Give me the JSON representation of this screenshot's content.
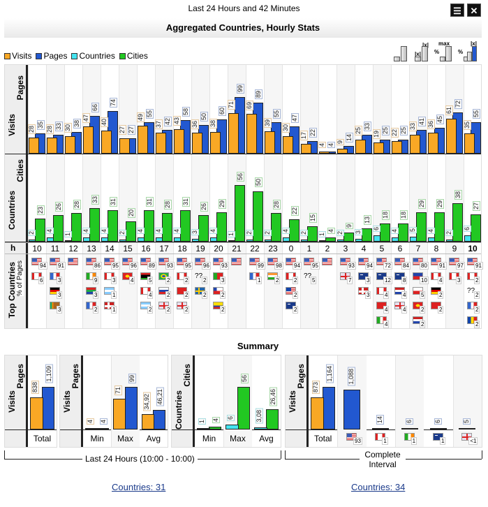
{
  "window": {
    "subtitle": "Last 24 Hours and 42 Minutes",
    "title": "Aggregated Countries, Hourly Stats",
    "menu_glyph": "☰",
    "close_glyph": "✕"
  },
  "legend": [
    {
      "label": "Visits",
      "color": "#f9a825"
    },
    {
      "label": "Pages",
      "color": "#2258d0"
    },
    {
      "label": "Countries",
      "color": "#44e4f0"
    },
    {
      "label": "Cities",
      "color": "#22c822"
    }
  ],
  "toolbar": {
    "abs": "|x|",
    "max": "max",
    "pct": "%"
  },
  "axis_labels": {
    "visits": "Visits",
    "pages": "Pages",
    "countries": "Countries",
    "cities": "Cities",
    "hour": "h",
    "top_countries": "Top Countries",
    "pct_pages": "% of Pages"
  },
  "chart_data": {
    "type": "bar",
    "title": "Aggregated Countries, Hourly Stats",
    "xlabel": "h",
    "categories": [
      "10",
      "11",
      "12",
      "13",
      "14",
      "15",
      "16",
      "17",
      "18",
      "19",
      "20",
      "21",
      "22",
      "23",
      "0",
      "1",
      "2",
      "3",
      "4",
      "5",
      "6",
      "7",
      "8",
      "9",
      "10"
    ],
    "series": [
      {
        "name": "Visits",
        "values": [
          28,
          28,
          30,
          47,
          40,
          27,
          49,
          37,
          43,
          36,
          38,
          71,
          69,
          39,
          30,
          17,
          4,
          9,
          25,
          19,
          22,
          33,
          36,
          61,
          35
        ]
      },
      {
        "name": "Pages",
        "values": [
          35,
          33,
          38,
          66,
          74,
          27,
          55,
          42,
          58,
          50,
          60,
          99,
          89,
          55,
          47,
          22,
          4,
          14,
          33,
          25,
          25,
          41,
          45,
          72,
          55
        ]
      },
      {
        "name": "Countries",
        "values": [
          2,
          4,
          1,
          4,
          4,
          2,
          4,
          4,
          4,
          3,
          4,
          1,
          2,
          2,
          4,
          2,
          1,
          2,
          3,
          6,
          4,
          5,
          4,
          2,
          6
        ]
      },
      {
        "name": "Cities",
        "values": [
          23,
          26,
          28,
          33,
          31,
          20,
          31,
          28,
          31,
          26,
          29,
          56,
          50,
          28,
          22,
          15,
          4,
          9,
          13,
          18,
          18,
          29,
          29,
          38,
          27
        ]
      }
    ],
    "top_countries": [
      [
        {
          "c": "us",
          "p": "94"
        },
        {
          "c": "ca",
          "p": "6"
        }
      ],
      [
        {
          "c": "us",
          "p": "91"
        },
        {
          "c": "fr",
          "p": "3"
        },
        {
          "c": "de",
          "p": "3"
        },
        {
          "c": "lk",
          "p": "3"
        }
      ],
      [
        {
          "c": "us"
        }
      ],
      [
        {
          "c": "us",
          "p": "86"
        },
        {
          "c": "ie",
          "p": "9"
        },
        {
          "c": "za",
          "p": "3"
        },
        {
          "c": "fr",
          "p": "2"
        }
      ],
      [
        {
          "c": "us",
          "p": "95"
        },
        {
          "c": "ca",
          "p": "3"
        },
        {
          "c": "ar",
          "p": "1"
        },
        {
          "c": "no",
          "p": "1"
        }
      ],
      [
        {
          "c": "us",
          "p": "96"
        },
        {
          "c": "mk",
          "p": "4"
        }
      ],
      [
        {
          "c": "us",
          "p": "89"
        },
        {
          "c": "ly",
          "p": "5"
        },
        {
          "c": "ca",
          "p": "4"
        },
        {
          "c": "ar",
          "p": "2"
        }
      ],
      [
        {
          "c": "us",
          "p": "93"
        },
        {
          "c": "br",
          "p": "2"
        },
        {
          "c": "sk",
          "p": "2"
        },
        {
          "c": "gb",
          "p": "2"
        }
      ],
      [
        {
          "c": "us",
          "p": "95"
        },
        {
          "c": "ca",
          "p": "2"
        },
        {
          "c": "cn",
          "p": "2"
        },
        {
          "c": "gb",
          "p": "2"
        }
      ],
      [
        {
          "c": "us",
          "p": "96"
        },
        {
          "c": "unk",
          "p": "2"
        },
        {
          "c": "se",
          "p": "2"
        }
      ],
      [
        {
          "c": "us",
          "p": "93"
        },
        {
          "c": "pt",
          "p": "3"
        },
        {
          "c": "cl",
          "p": "2"
        },
        {
          "c": "co",
          "p": "2"
        }
      ],
      [
        {
          "c": "us"
        }
      ],
      [
        {
          "c": "us",
          "p": "99"
        },
        {
          "c": "fr",
          "p": "1"
        }
      ],
      [
        {
          "c": "us",
          "p": "98"
        },
        {
          "c": "in",
          "p": "2"
        }
      ],
      [
        {
          "c": "us",
          "p": "94"
        },
        {
          "c": "ca",
          "p": "2"
        },
        {
          "c": "my",
          "p": "2"
        },
        {
          "c": "nz",
          "p": "2"
        }
      ],
      [
        {
          "c": "us",
          "p": "95"
        },
        {
          "c": "unk",
          "p": "5"
        }
      ],
      [
        {
          "c": "us"
        }
      ],
      [
        {
          "c": "us",
          "p": "93"
        },
        {
          "c": "gb",
          "p": "7"
        }
      ],
      [
        {
          "c": "us",
          "p": "94"
        },
        {
          "c": "au",
          "p": "3"
        },
        {
          "c": "no",
          "p": "3"
        }
      ],
      [
        {
          "c": "us",
          "p": "72"
        },
        {
          "c": "au",
          "p": "12"
        },
        {
          "c": "ca",
          "p": "4"
        },
        {
          "c": "hk",
          "p": "4"
        },
        {
          "c": "it",
          "p": "4"
        }
      ],
      [
        {
          "c": "us",
          "p": "84"
        },
        {
          "c": "au",
          "p": "8"
        },
        {
          "c": "nl",
          "p": "4"
        },
        {
          "c": "gb",
          "p": "4"
        }
      ],
      [
        {
          "c": "us",
          "p": "80"
        },
        {
          "c": "ph",
          "p": "10"
        },
        {
          "c": "pl",
          "p": "5"
        },
        {
          "c": "mk",
          "p": "2"
        },
        {
          "c": "nl",
          "p": "2"
        }
      ],
      [
        {
          "c": "us",
          "p": "91"
        },
        {
          "c": "ca",
          "p": "4"
        },
        {
          "c": "de",
          "p": "2"
        },
        {
          "c": "tn",
          "p": "2"
        }
      ],
      [
        {
          "c": "us",
          "p": "97"
        },
        {
          "c": "ca",
          "p": "3"
        }
      ],
      [
        {
          "c": "us",
          "p": "91"
        },
        {
          "c": "ca",
          "p": "2"
        },
        {
          "c": "unk",
          "p": "2"
        },
        {
          "c": "fr",
          "p": "2"
        },
        {
          "c": "ro",
          "p": "2"
        }
      ]
    ]
  },
  "summary": {
    "title": "Summary",
    "last24": {
      "label": "Last 24 Hours (10:00 - 10:00)",
      "total": [
        {
          "category": "Total",
          "a": {
            "v": 838,
            "l": "838"
          },
          "b": {
            "v": 1109,
            "l": "1,109"
          }
        }
      ],
      "stats": [
        {
          "category": "Min",
          "a": {
            "v": 4,
            "l": "4"
          },
          "b": {
            "v": 4,
            "l": "4"
          }
        },
        {
          "category": "Max",
          "a": {
            "v": 71,
            "l": "71"
          },
          "b": {
            "v": 99,
            "l": "99"
          }
        },
        {
          "category": "Avg",
          "a": {
            "v": 34.92,
            "l": "34,92"
          },
          "b": {
            "v": 46.21,
            "l": "46,21"
          }
        }
      ],
      "geo": [
        {
          "category": "Min",
          "a": {
            "v": 1,
            "l": "1"
          },
          "b": {
            "v": 4,
            "l": "4"
          }
        },
        {
          "category": "Max",
          "a": {
            "v": 6,
            "l": "6"
          },
          "b": {
            "v": 56,
            "l": "56"
          }
        },
        {
          "category": "Avg",
          "a": {
            "v": 3.08,
            "l": "3,08"
          },
          "b": {
            "v": 26.46,
            "l": "26,46"
          }
        }
      ]
    },
    "complete": {
      "label": "Complete Interval",
      "total": {
        "category": "Total",
        "a": {
          "v": 873,
          "l": "873"
        },
        "b": {
          "v": 1164,
          "l": "1,164"
        }
      },
      "by_country": [
        {
          "c": "us",
          "p": "93",
          "b": {
            "v": 1088,
            "l": "1,088"
          }
        },
        {
          "c": "ca",
          "p": "1",
          "b": {
            "v": 14,
            "l": "14"
          }
        },
        {
          "c": "ie",
          "p": "1",
          "b": {
            "v": 6,
            "l": "6"
          }
        },
        {
          "c": "au",
          "p": "1",
          "b": {
            "v": 6,
            "l": "6"
          }
        },
        {
          "c": "gb",
          "p": "<1",
          "b": {
            "v": 5,
            "l": "5"
          }
        }
      ]
    }
  },
  "links": {
    "last24": "Countries: 31",
    "complete": "Countries: 34"
  }
}
